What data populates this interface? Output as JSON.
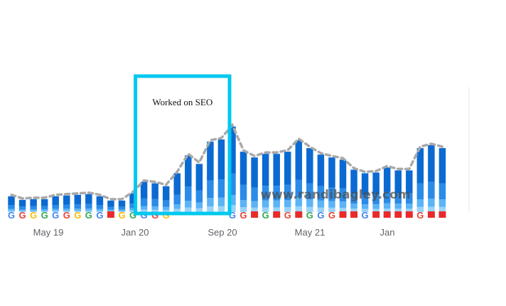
{
  "chart_data": {
    "type": "bar",
    "stacked": true,
    "x_tick_labels": [
      "May 19",
      "Jan 20",
      "Sep 20",
      "May 21",
      "Jan"
    ],
    "colors": {
      "layer1": "#0b6ad2",
      "layer2": "#2a8be8",
      "layer3": "#5ab4f5",
      "layer4": "#9ad3f8",
      "trend": "#a9a9a9",
      "highlight": "#00c8ee",
      "flag": "#ea2a2a"
    },
    "totals": [
      22,
      17,
      18,
      18,
      22,
      23,
      24,
      25,
      22,
      16,
      16,
      26,
      42,
      40,
      36,
      54,
      79,
      67,
      98,
      101,
      119,
      84,
      76,
      81,
      81,
      84,
      100,
      89,
      80,
      76,
      73,
      59,
      54,
      55,
      62,
      58,
      58,
      89,
      93,
      89
    ],
    "layer_fractions": [
      0.55,
      0.25,
      0.12,
      0.08
    ],
    "markers": [
      "G",
      "G",
      "G",
      "G",
      "G",
      "G",
      "G",
      "G",
      "G",
      "F",
      "G",
      "G",
      "G",
      "G",
      "G",
      "",
      "",
      "",
      "",
      "",
      "G",
      "G",
      "F",
      "G",
      "F",
      "G",
      "F",
      "G",
      "G",
      "G",
      "F",
      "F",
      "G",
      "F",
      "F",
      "F",
      "F",
      "G",
      "F",
      "F"
    ],
    "annotation": {
      "label": "Worked on SEO",
      "start_index": 12,
      "end_index": 20
    }
  },
  "watermark": "www.randibagley.com"
}
